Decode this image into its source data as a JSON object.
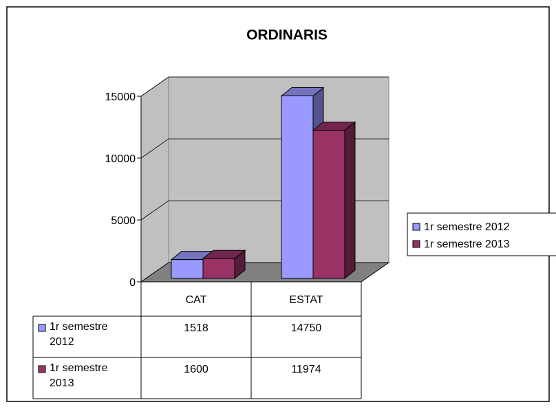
{
  "chart_data": {
    "type": "bar3d",
    "title": "ORDINARIS",
    "categories": [
      "CAT",
      "ESTAT"
    ],
    "series": [
      {
        "name": "1r semestre 2012",
        "color": "#9999ff",
        "values": [
          1518,
          14750
        ]
      },
      {
        "name": "1r semestre 2013",
        "color": "#993366",
        "values": [
          1600,
          11974
        ]
      }
    ],
    "ylim": [
      0,
      15000
    ],
    "yticks": [
      0,
      5000,
      10000,
      15000
    ],
    "grid": true,
    "legend": "right",
    "data_table": true
  }
}
